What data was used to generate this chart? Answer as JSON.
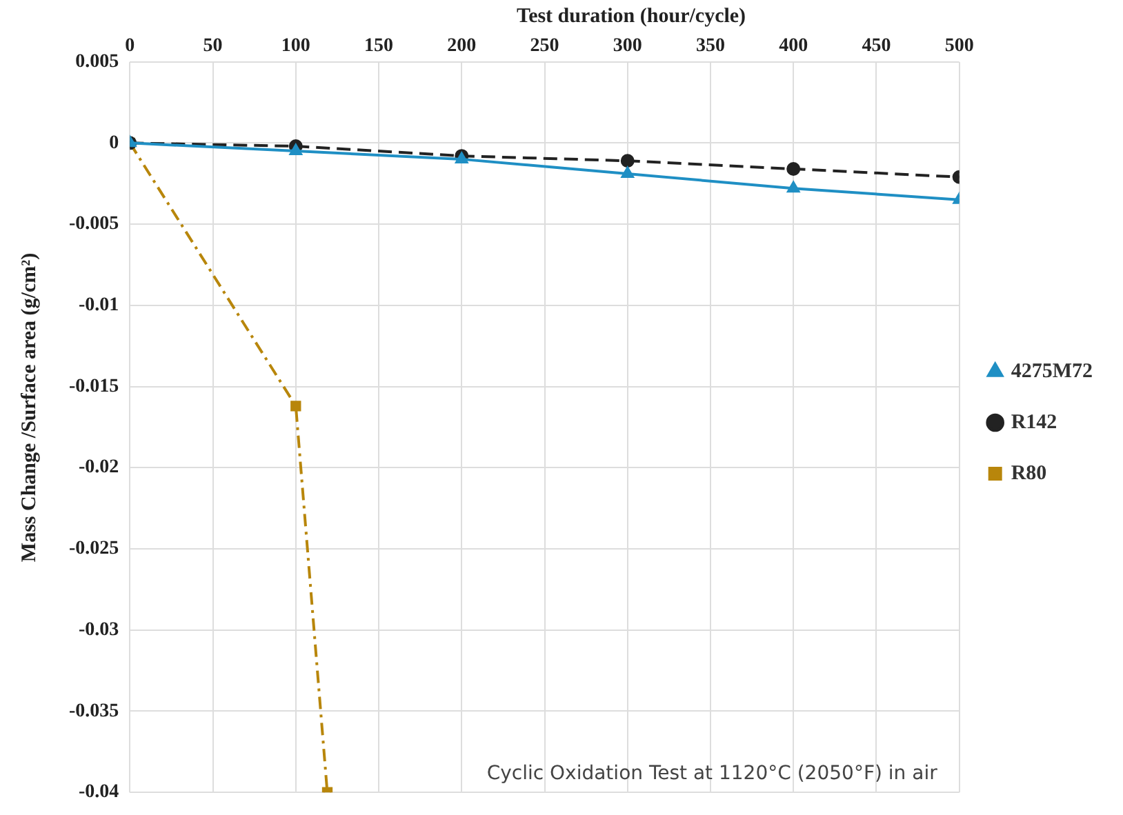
{
  "chart_data": {
    "type": "line",
    "xlabel": "Test duration (hour/cycle)",
    "ylabel": "Mass Change /Surface area  (g/cm²)",
    "xlim": [
      0,
      500
    ],
    "xticks": [
      0,
      50,
      100,
      150,
      200,
      250,
      300,
      350,
      400,
      450,
      500
    ],
    "ylim": [
      -0.04,
      0.005
    ],
    "yticks": [
      -0.04,
      -0.035,
      -0.03,
      -0.025,
      -0.02,
      -0.015,
      -0.01,
      -0.005,
      0,
      0.005
    ],
    "grid": true,
    "legend": "right",
    "annotations": [
      "Cyclic Oxidation Test at 1120°C (2050°F) in air"
    ],
    "series": [
      {
        "name": "4275M72",
        "color": "#1f8fc4",
        "marker": "triangle",
        "line_style": "solid",
        "x": [
          0,
          100,
          200,
          300,
          400,
          500
        ],
        "values": [
          0,
          -0.0005,
          -0.001,
          -0.0019,
          -0.0028,
          -0.0035
        ]
      },
      {
        "name": "R142",
        "color": "#222222",
        "marker": "circle",
        "line_style": "dashed",
        "x": [
          0,
          100,
          200,
          300,
          400,
          500
        ],
        "values": [
          0,
          -0.0002,
          -0.0008,
          -0.0011,
          -0.0016,
          -0.0021
        ]
      },
      {
        "name": "R80",
        "color": "#b8860b",
        "marker": "square",
        "line_style": "dotted",
        "x": [
          0,
          100,
          119
        ],
        "values": [
          0,
          -0.0162,
          -0.04
        ]
      }
    ]
  }
}
